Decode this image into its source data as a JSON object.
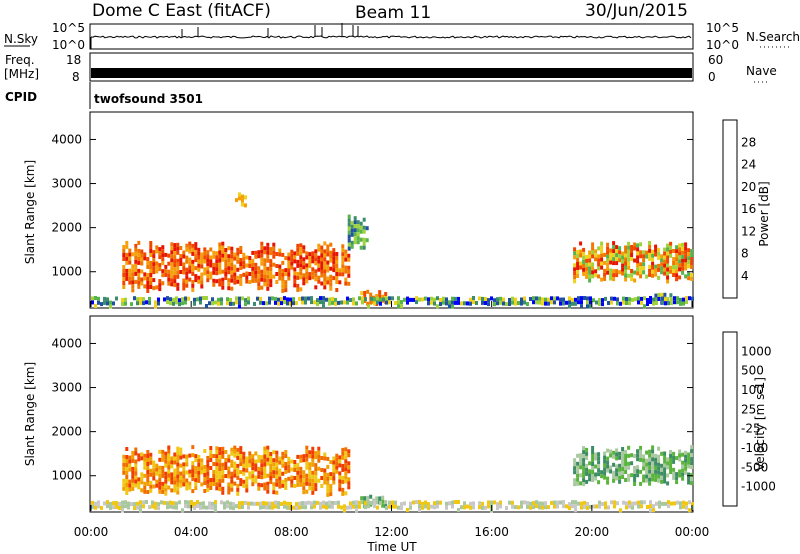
{
  "header": {
    "station": "Dome C East (fitACF)",
    "beam": "Beam 11",
    "date": "30/Jun/2015"
  },
  "panels": {
    "nsky_label": "N.Sky",
    "nsky_ticks": [
      "10^5",
      "10^0"
    ],
    "nsearch_label": "N.Search",
    "nsearch_ticks": [
      "10^5",
      "10^0"
    ],
    "freq_label": "Freq.",
    "freq_unit": "[MHz]",
    "freq_ticks": [
      "18",
      "8"
    ],
    "nave_label": "Nave",
    "nave_ticks": [
      "60",
      "0"
    ],
    "cpid_label": "CPID",
    "cpid_value": "twofsound 3501"
  },
  "colors": {
    "power_scale": [
      "#0000ff",
      "#2050a0",
      "#3c8c6e",
      "#56b44a",
      "#a0d23c",
      "#f0d21e",
      "#f5a00a",
      "#f07800",
      "#f04600",
      "#e61400"
    ],
    "velocity_scale": [
      "#2244bb",
      "#336688",
      "#3c8c64",
      "#5ab43c",
      "#aac8a0",
      "#c8c8c8",
      "#f0c814",
      "#f0a000",
      "#f06e00",
      "#f03c00",
      "#e60000"
    ]
  },
  "chart_data": [
    {
      "type": "heatmap",
      "name": "power",
      "ylabel": "Slant Range [km]",
      "ylim": [
        200,
        4600
      ],
      "yticks": [
        "1000",
        "2000",
        "3000",
        "4000"
      ],
      "colorbar": {
        "label": "Power [dB]",
        "ticks": [
          "4",
          "8",
          "12",
          "16",
          "20",
          "24",
          "28"
        ],
        "range": [
          0,
          30
        ]
      },
      "x_ticks": [
        "00:00",
        "04:00",
        "08:00",
        "12:00",
        "16:00",
        "20:00",
        "00:00"
      ],
      "regions": [
        {
          "t_start": "01:15",
          "t_end": "10:15",
          "r_min": 600,
          "r_max": 1700,
          "level": "24-30"
        },
        {
          "t_start": "10:15",
          "t_end": "11:00",
          "r_min": 1500,
          "r_max": 2300,
          "level": "8-16"
        },
        {
          "t_start": "05:45",
          "t_end": "06:10",
          "r_min": 2500,
          "r_max": 2800,
          "level": "20-24"
        },
        {
          "t_start": "10:45",
          "t_end": "11:45",
          "r_min": 300,
          "r_max": 600,
          "level": "20-28"
        },
        {
          "t_start": "19:15",
          "t_end": "24:00",
          "r_min": 800,
          "r_max": 1700,
          "level": "16-28"
        },
        {
          "t_start": "22:30",
          "t_end": "23:15",
          "r_min": 300,
          "r_max": 550,
          "level": "4-24"
        },
        {
          "t_start": "00:00",
          "t_end": "24:00",
          "r_min": 250,
          "r_max": 450,
          "level": "4-24"
        }
      ]
    },
    {
      "type": "heatmap",
      "name": "velocity",
      "ylabel": "Slant Range [km]",
      "ylim": [
        200,
        4600
      ],
      "yticks": [
        "1000",
        "2000",
        "3000",
        "4000"
      ],
      "colorbar": {
        "label": "Velocity [m s-1]",
        "ticks": [
          "1000",
          "500",
          "100",
          "25",
          "-25",
          "-100",
          "-500",
          "-1000"
        ]
      },
      "x_ticks": [
        "00:00",
        "04:00",
        "08:00",
        "12:00",
        "16:00",
        "20:00",
        "00:00"
      ],
      "xlabel": "Time UT",
      "regions": [
        {
          "t_start": "01:15",
          "t_end": "10:15",
          "r_min": 600,
          "r_max": 1700,
          "level": "-100 to -500"
        },
        {
          "t_start": "10:45",
          "t_end": "11:45",
          "r_min": 300,
          "r_max": 600,
          "level": "25-100"
        },
        {
          "t_start": "19:15",
          "t_end": "24:00",
          "r_min": 800,
          "r_max": 1700,
          "level": "25-100"
        },
        {
          "t_start": "00:00",
          "t_end": "24:00",
          "r_min": 250,
          "r_max": 450,
          "level": "-25 to 25"
        }
      ]
    }
  ]
}
